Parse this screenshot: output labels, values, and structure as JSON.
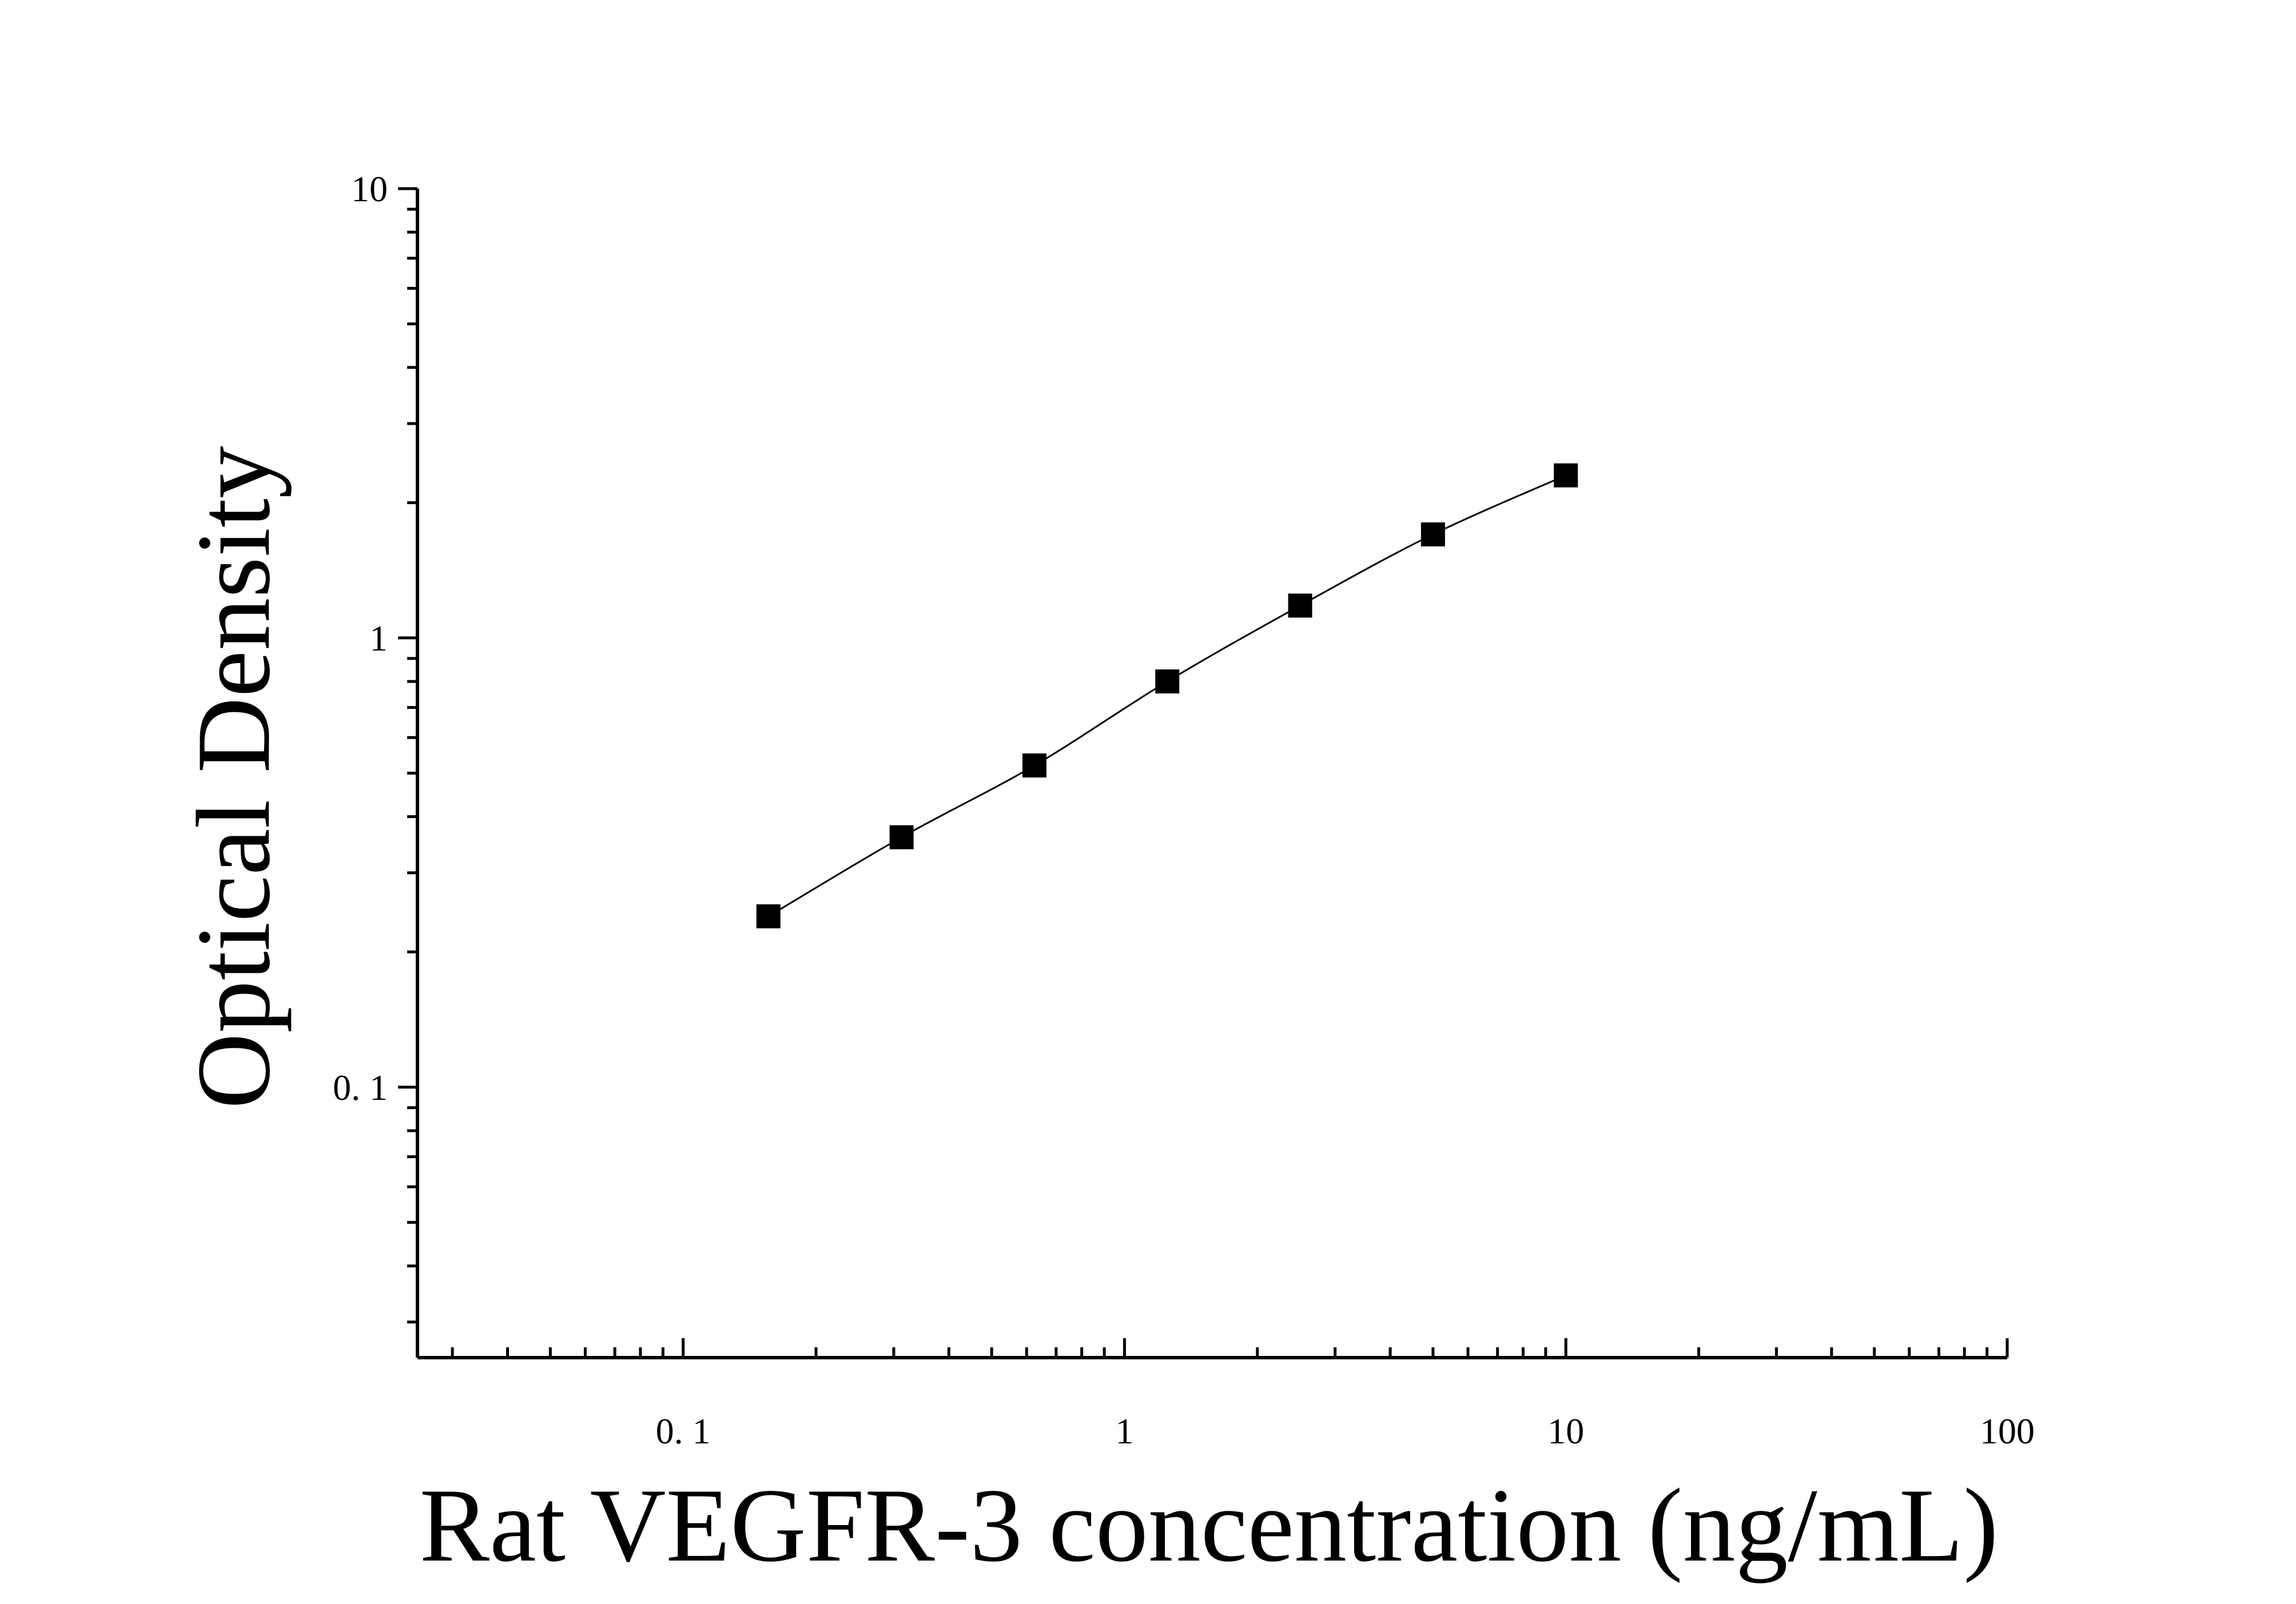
{
  "chart_data": {
    "type": "scatter",
    "title": "",
    "xlabel": "Rat VEGFR-3 concentration (ng/mL)",
    "ylabel": "Optical Density",
    "x_scale": "log",
    "y_scale": "log",
    "xlim": [
      0.025,
      100
    ],
    "ylim": [
      0.025,
      10
    ],
    "x_ticks": [
      {
        "value": 0.1,
        "label": "0. 1"
      },
      {
        "value": 1,
        "label": "1"
      },
      {
        "value": 10,
        "label": "10"
      },
      {
        "value": 100,
        "label": "100"
      }
    ],
    "y_ticks": [
      {
        "value": 0.1,
        "label": "0. 1"
      },
      {
        "value": 1,
        "label": "1"
      },
      {
        "value": 10,
        "label": "10"
      }
    ],
    "grid": false,
    "series": [
      {
        "marker": "square",
        "color": "#000000",
        "points": [
          {
            "x": 0.156,
            "y": 0.24
          },
          {
            "x": 0.3125,
            "y": 0.36
          },
          {
            "x": 0.625,
            "y": 0.52
          },
          {
            "x": 1.25,
            "y": 0.8
          },
          {
            "x": 2.5,
            "y": 1.18
          },
          {
            "x": 5,
            "y": 1.7
          },
          {
            "x": 10,
            "y": 2.3
          }
        ],
        "fit_curve": true
      }
    ]
  }
}
